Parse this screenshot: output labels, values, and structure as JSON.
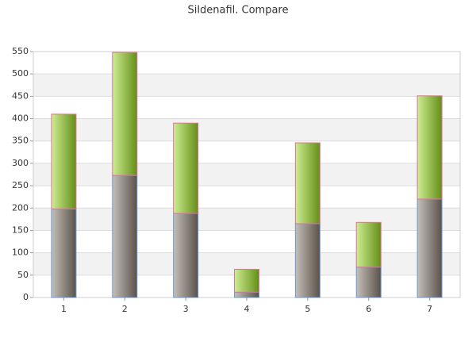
{
  "chart_data": {
    "type": "stacked_bar",
    "title": "Sildenafil. Compare",
    "categories": [
      "1",
      "2",
      "3",
      "4",
      "5",
      "6",
      "7"
    ],
    "series": [
      {
        "color": "#8a7e72",
        "values": [
          198,
          273,
          188,
          12,
          165,
          68,
          220
        ]
      },
      {
        "color": "#9ada24",
        "values": [
          212,
          275,
          202,
          51,
          181,
          100,
          231
        ]
      }
    ],
    "ylim": [
      0,
      550
    ],
    "yticks": [
      0,
      50,
      100,
      150,
      200,
      250,
      300,
      350,
      400,
      450,
      500,
      550
    ],
    "grid": true
  }
}
